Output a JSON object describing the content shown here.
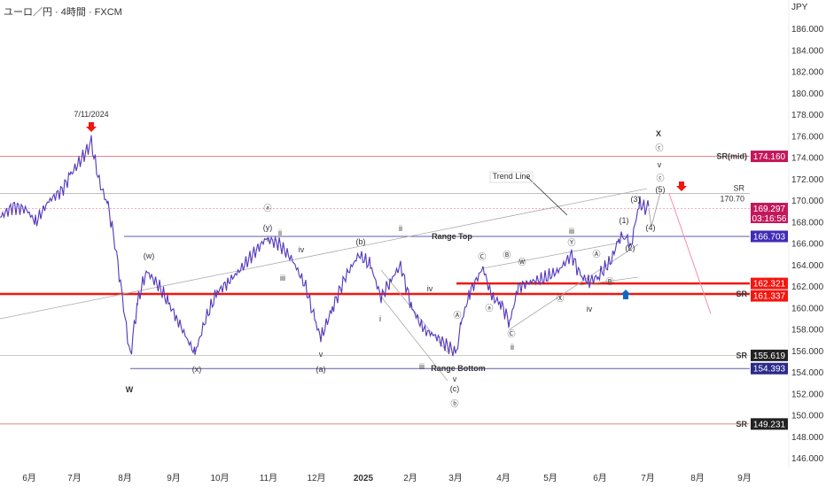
{
  "header": {
    "title": "ユーロ／円 · 4時間 · FXCM",
    "currency": "JPY"
  },
  "chart_data": {
    "type": "line",
    "title": "ユーロ／円 · 4時間 · FXCM",
    "ylabel": "JPY",
    "ylim": [
      145,
      187
    ],
    "y_ticks": [
      "186.000",
      "184.000",
      "182.000",
      "180.000",
      "178.000",
      "176.000",
      "174.000",
      "172.000",
      "170.000",
      "168.000",
      "166.000",
      "164.000",
      "162.000",
      "160.000",
      "158.000",
      "156.000",
      "154.000",
      "152.000",
      "150.000",
      "148.000",
      "146.000"
    ],
    "x_ticks": [
      "6月",
      "7月",
      "8月",
      "9月",
      "10月",
      "11月",
      "12月",
      "2025",
      "2月",
      "3月",
      "4月",
      "5月",
      "6月",
      "7月",
      "8月",
      "9月"
    ],
    "price_levels": [
      {
        "label": "SR(mid)",
        "value": "174.160",
        "color": "#c2185b"
      },
      {
        "label": "",
        "value": "169.297",
        "sub": "03:16:56",
        "color": "#c2185b"
      },
      {
        "label": "Range Top",
        "value": "166.703",
        "color": "#3f2bb5"
      },
      {
        "label": "",
        "value": "162.321",
        "color": "#f2160f"
      },
      {
        "label": "SR",
        "value": "161.337",
        "color": "#f2160f"
      },
      {
        "label": "SR",
        "value": "155.619",
        "color": "#222"
      },
      {
        "label": "Range Bottom",
        "value": "154.393",
        "color": "#2a2a8a"
      },
      {
        "label": "SR",
        "value": "149.231",
        "color": "#222"
      }
    ],
    "sr_line": {
      "label": "SR",
      "value": "170.70"
    },
    "annotations": [
      "7/11/2024",
      "X",
      "ⓒ",
      "v",
      "ⓒ",
      "(5)",
      "(3)",
      "(1)",
      "(4)",
      "(2)",
      "Trend Line",
      "ⓐ",
      "(y)",
      "ii",
      "i",
      "iii",
      "iv",
      "(w)",
      "(x)",
      "W",
      "(b)",
      "(a)",
      "v",
      "ii",
      "i",
      "iii",
      "iv",
      "(c)",
      "ⓑ",
      "ⓐ",
      "Ⓐ",
      "Ⓒ",
      "Ⓑ",
      "Ⓦ",
      "Ⓨ",
      "Ⓐ",
      "Ⓧ",
      "Ⓒ",
      "Ⓑ",
      "ii",
      "iii",
      "iv",
      "v"
    ],
    "series": [
      {
        "name": "EURJPY",
        "values": [
          [
            0,
            168.5
          ],
          [
            15,
            169.5
          ],
          [
            30,
            169.2
          ],
          [
            40,
            168
          ],
          [
            55,
            170
          ],
          [
            70,
            171
          ],
          [
            80,
            172.5
          ],
          [
            95,
            174.3
          ],
          [
            103,
            175.4
          ],
          [
            112,
            171.8
          ],
          [
            122,
            169.5
          ],
          [
            130,
            166
          ],
          [
            138,
            161
          ],
          [
            147,
            155.5
          ],
          [
            155,
            160.5
          ],
          [
            165,
            163.5
          ],
          [
            180,
            162
          ],
          [
            190,
            160.5
          ],
          [
            200,
            159
          ],
          [
            212,
            157
          ],
          [
            220,
            155.8
          ],
          [
            232,
            159
          ],
          [
            245,
            161.5
          ],
          [
            258,
            162.5
          ],
          [
            270,
            163.5
          ],
          [
            285,
            165
          ],
          [
            300,
            166.5
          ],
          [
            315,
            166
          ],
          [
            330,
            164.5
          ],
          [
            345,
            162
          ],
          [
            355,
            159
          ],
          [
            362,
            157.2
          ],
          [
            375,
            160
          ],
          [
            390,
            163
          ],
          [
            405,
            165
          ],
          [
            418,
            164
          ],
          [
            430,
            161
          ],
          [
            440,
            162.5
          ],
          [
            452,
            164
          ],
          [
            465,
            160
          ],
          [
            478,
            158
          ],
          [
            490,
            157.5
          ],
          [
            505,
            156.5
          ],
          [
            515,
            155.8
          ],
          [
            520,
            158.5
          ],
          [
            530,
            161.5
          ],
          [
            545,
            163.8
          ],
          [
            555,
            161
          ],
          [
            565,
            160.5
          ],
          [
            575,
            158.7
          ],
          [
            585,
            162
          ],
          [
            600,
            162.5
          ],
          [
            615,
            162.8
          ],
          [
            630,
            163.5
          ],
          [
            645,
            165
          ],
          [
            655,
            163
          ],
          [
            665,
            162.5
          ],
          [
            675,
            163
          ],
          [
            690,
            164.5
          ],
          [
            698,
            166.5
          ],
          [
            705,
            166.8
          ],
          [
            712,
            165.8
          ],
          [
            718,
            168.5
          ],
          [
            722,
            169.8
          ],
          [
            728,
            169.3
          ],
          [
            732,
            169.5
          ]
        ]
      }
    ]
  }
}
